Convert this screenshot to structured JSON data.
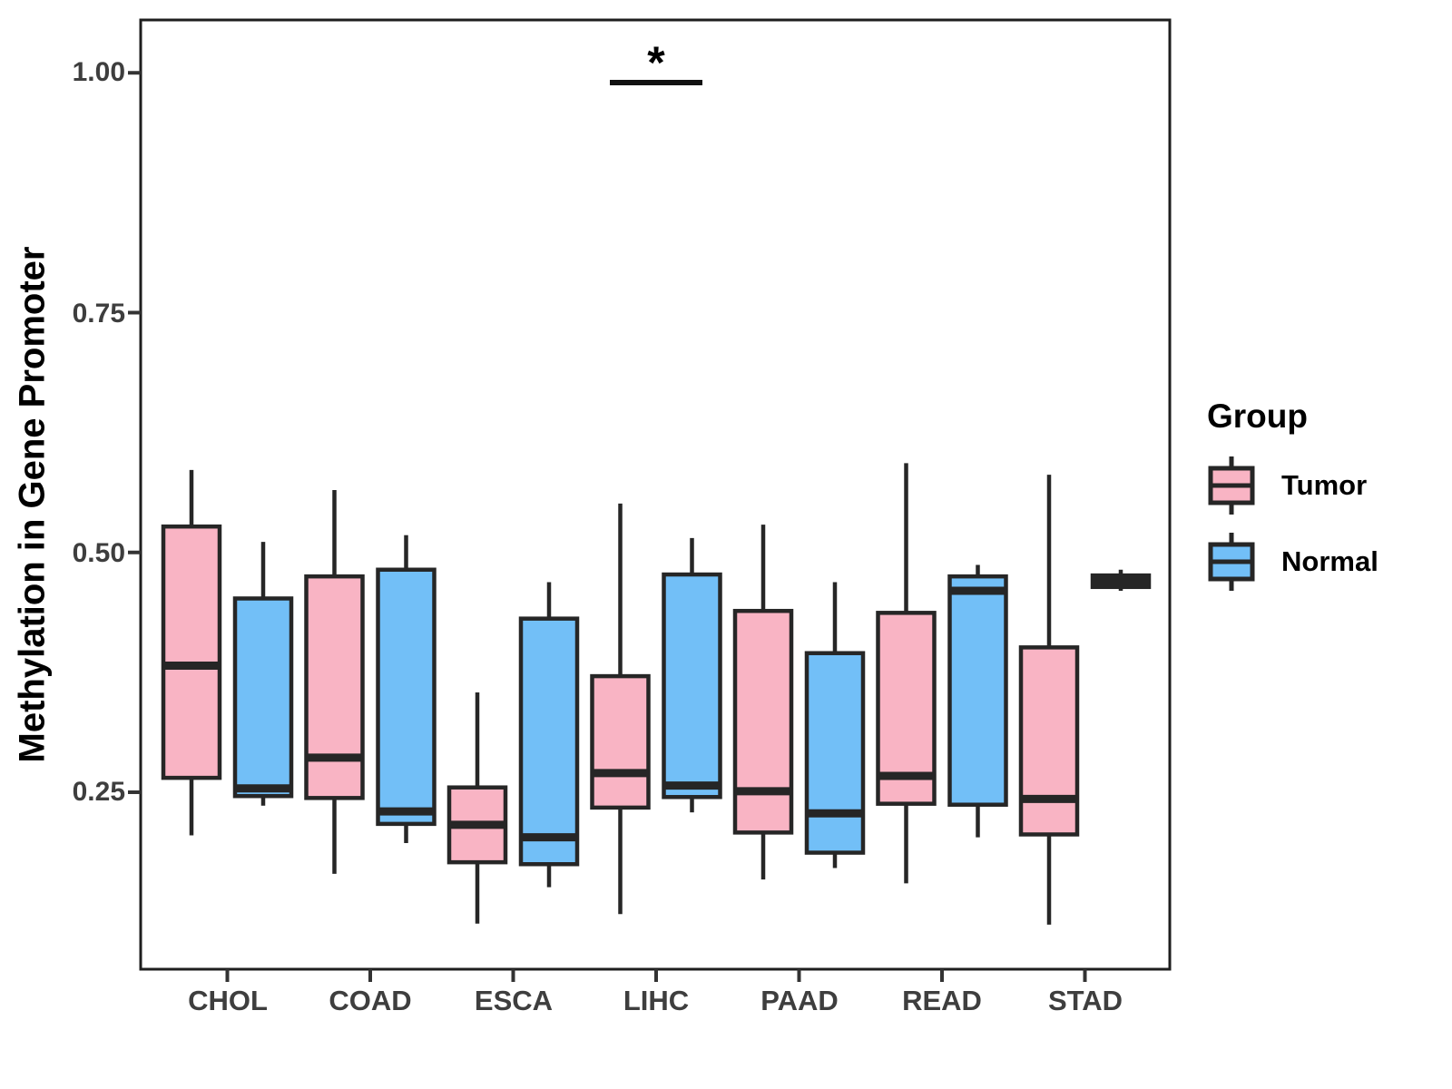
{
  "chart_data": {
    "type": "grouped_boxplot",
    "title": "",
    "xlabel": "",
    "ylabel": "Methylation in Gene Promoter",
    "categories": [
      "CHOL",
      "COAD",
      "ESCA",
      "LIHC",
      "PAAD",
      "READ",
      "STAD"
    ],
    "yticks": [
      1.0,
      0.75,
      0.5,
      0.25
    ],
    "ytick_labels": [
      "1.00",
      "0.75",
      "0.50",
      "0.25"
    ],
    "ylim": [
      0.0655,
      1.0551
    ],
    "grid": "off",
    "legend_position": "right",
    "legend": {
      "title": "Group",
      "entries": [
        {
          "label": "Tumor",
          "color": "#F9B4C4"
        },
        {
          "label": "Normal",
          "color": "#72BFF7"
        }
      ]
    },
    "series": [
      {
        "name": "Tumor",
        "color": "#F9B4C4",
        "boxes": [
          {
            "category": "CHOL",
            "min": 0.205,
            "q1": 0.265,
            "median": 0.382,
            "q3": 0.527,
            "max": 0.586
          },
          {
            "category": "COAD",
            "min": 0.165,
            "q1": 0.244,
            "median": 0.286,
            "q3": 0.475,
            "max": 0.565
          },
          {
            "category": "ESCA",
            "min": 0.113,
            "q1": 0.177,
            "median": 0.216,
            "q3": 0.255,
            "max": 0.354
          },
          {
            "category": "LIHC",
            "min": 0.123,
            "q1": 0.234,
            "median": 0.27,
            "q3": 0.371,
            "max": 0.551
          },
          {
            "category": "PAAD",
            "min": 0.159,
            "q1": 0.208,
            "median": 0.251,
            "q3": 0.439,
            "max": 0.529
          },
          {
            "category": "READ",
            "min": 0.155,
            "q1": 0.238,
            "median": 0.267,
            "q3": 0.437,
            "max": 0.593
          },
          {
            "category": "STAD",
            "min": 0.112,
            "q1": 0.206,
            "median": 0.243,
            "q3": 0.401,
            "max": 0.581
          }
        ]
      },
      {
        "name": "Normal",
        "color": "#72BFF7",
        "boxes": [
          {
            "category": "CHOL",
            "min": 0.236,
            "q1": 0.246,
            "median": 0.254,
            "q3": 0.452,
            "max": 0.511
          },
          {
            "category": "COAD",
            "min": 0.197,
            "q1": 0.217,
            "median": 0.23,
            "q3": 0.482,
            "max": 0.518
          },
          {
            "category": "ESCA",
            "min": 0.151,
            "q1": 0.175,
            "median": 0.203,
            "q3": 0.431,
            "max": 0.469
          },
          {
            "category": "LIHC",
            "min": 0.229,
            "q1": 0.245,
            "median": 0.257,
            "q3": 0.477,
            "max": 0.515
          },
          {
            "category": "PAAD",
            "min": 0.171,
            "q1": 0.187,
            "median": 0.228,
            "q3": 0.395,
            "max": 0.469
          },
          {
            "category": "READ",
            "min": 0.203,
            "q1": 0.237,
            "median": 0.46,
            "q3": 0.475,
            "max": 0.487
          },
          {
            "category": "STAD",
            "min": 0.46,
            "q1": 0.464,
            "median": 0.47,
            "q3": 0.476,
            "max": 0.482
          }
        ]
      }
    ],
    "significance": {
      "label": "*",
      "category": "LIHC",
      "y_value": 0.99
    },
    "colors": {
      "box_stroke": "#262626",
      "panel_border": "#1e1e1e",
      "tick": "#333333",
      "axis_text": "#3e3e3e"
    }
  }
}
